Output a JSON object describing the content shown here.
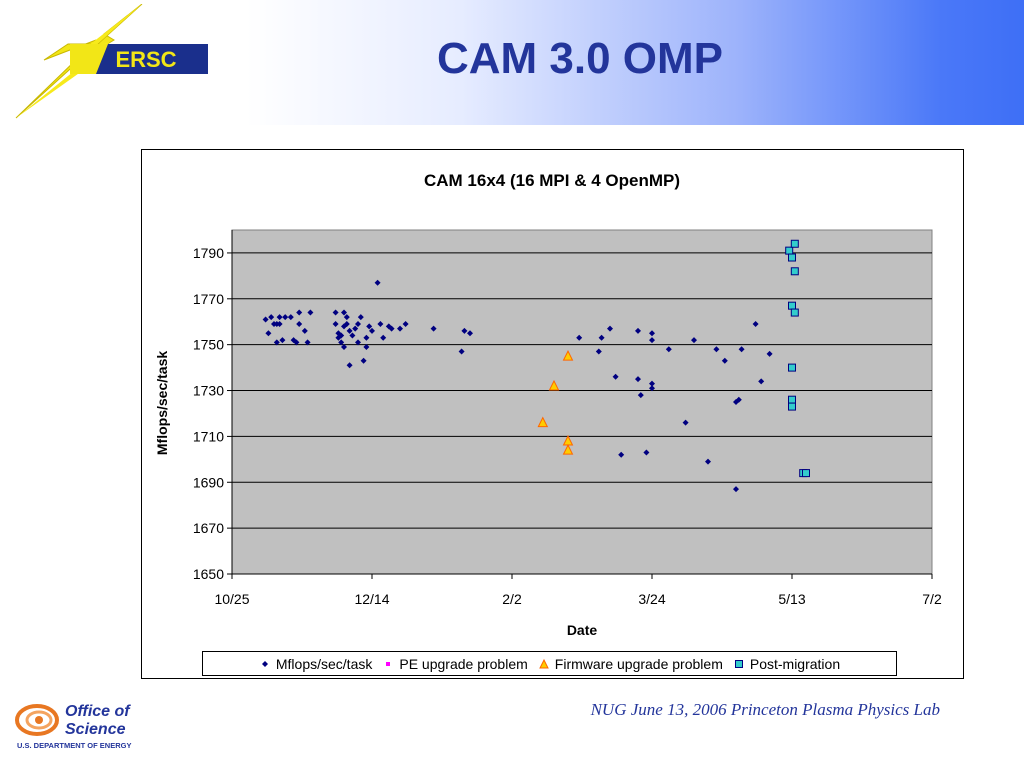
{
  "slide": {
    "title": "CAM 3.0 OMP",
    "footer": "NUG June 13, 2006 Princeton Plasma Physics Lab"
  },
  "logos": {
    "nersc": {
      "text": "ERSC",
      "icon": "nersc-lightning-logo"
    },
    "office_of_science": {
      "line1": "Office of",
      "line2": "Science",
      "line3": "U.S. DEPARTMENT OF ENERGY",
      "icon": "doe-science-logo"
    }
  },
  "colors": {
    "title": "#23359b",
    "plot_bg": "#c0c0c0",
    "series_main": "#000080",
    "series_pe": "#ff00ff",
    "series_firmware_fill": "#ffcc00",
    "series_firmware_stroke": "#ff6600",
    "series_post_fill": "#33cccc",
    "series_post_stroke": "#000080"
  },
  "chart_data": {
    "type": "scatter",
    "title": "CAM 16x4 (16 MPI & 4 OpenMP)",
    "xlabel": "Date",
    "ylabel": "Mflops/sec/task",
    "ylim": [
      1650,
      1800
    ],
    "x_ticks": [
      "10/25",
      "12/14",
      "2/2",
      "3/24",
      "5/13",
      "7/2"
    ],
    "y_ticks": [
      1650,
      1670,
      1690,
      1710,
      1730,
      1750,
      1770,
      1790
    ],
    "grid": "horizontal",
    "legend_position": "bottom",
    "series": [
      {
        "name": "Mflops/sec/task",
        "marker": "diamond",
        "points": [
          [
            "11/6",
            1761
          ],
          [
            "11/7",
            1755
          ],
          [
            "11/8",
            1762
          ],
          [
            "11/9",
            1759
          ],
          [
            "11/10",
            1759
          ],
          [
            "11/10",
            1751
          ],
          [
            "11/11",
            1762
          ],
          [
            "11/11",
            1759
          ],
          [
            "11/12",
            1752
          ],
          [
            "11/13",
            1762
          ],
          [
            "11/15",
            1762
          ],
          [
            "11/16",
            1752
          ],
          [
            "11/17",
            1751
          ],
          [
            "11/18",
            1764
          ],
          [
            "11/18",
            1759
          ],
          [
            "11/20",
            1756
          ],
          [
            "11/21",
            1751
          ],
          [
            "11/22",
            1764
          ],
          [
            "12/1",
            1764
          ],
          [
            "12/1",
            1759
          ],
          [
            "12/2",
            1755
          ],
          [
            "12/2",
            1753
          ],
          [
            "12/3",
            1754
          ],
          [
            "12/3",
            1751
          ],
          [
            "12/4",
            1764
          ],
          [
            "12/4",
            1758
          ],
          [
            "12/4",
            1749
          ],
          [
            "12/5",
            1762
          ],
          [
            "12/5",
            1759
          ],
          [
            "12/6",
            1741
          ],
          [
            "12/6",
            1756
          ],
          [
            "12/7",
            1754
          ],
          [
            "12/8",
            1757
          ],
          [
            "12/9",
            1759
          ],
          [
            "12/9",
            1751
          ],
          [
            "12/10",
            1762
          ],
          [
            "12/11",
            1743
          ],
          [
            "12/12",
            1749
          ],
          [
            "12/12",
            1753
          ],
          [
            "12/13",
            1758
          ],
          [
            "12/14",
            1756
          ],
          [
            "12/16",
            1777
          ],
          [
            "12/17",
            1759
          ],
          [
            "12/18",
            1753
          ],
          [
            "12/20",
            1758
          ],
          [
            "12/21",
            1757
          ],
          [
            "12/24",
            1757
          ],
          [
            "12/26",
            1759
          ],
          [
            "1/5",
            1757
          ],
          [
            "1/15",
            1747
          ],
          [
            "1/16",
            1756
          ],
          [
            "1/18",
            1755
          ],
          [
            "2/26",
            1753
          ],
          [
            "3/5",
            1747
          ],
          [
            "3/6",
            1753
          ],
          [
            "3/9",
            1757
          ],
          [
            "3/11",
            1736
          ],
          [
            "3/13",
            1702
          ],
          [
            "3/19",
            1756
          ],
          [
            "3/19",
            1735
          ],
          [
            "3/20",
            1728
          ],
          [
            "3/22",
            1703
          ],
          [
            "3/24",
            1755
          ],
          [
            "3/24",
            1752
          ],
          [
            "3/24",
            1733
          ],
          [
            "3/24",
            1731
          ],
          [
            "3/30",
            1748
          ],
          [
            "4/5",
            1716
          ],
          [
            "4/8",
            1752
          ],
          [
            "4/13",
            1699
          ],
          [
            "4/16",
            1748
          ],
          [
            "4/19",
            1743
          ],
          [
            "4/23",
            1687
          ],
          [
            "4/23",
            1725
          ],
          [
            "4/24",
            1726
          ],
          [
            "4/25",
            1748
          ],
          [
            "4/30",
            1759
          ],
          [
            "5/2",
            1734
          ],
          [
            "5/5",
            1746
          ]
        ]
      },
      {
        "name": "PE upgrade problem",
        "marker": "square",
        "points": []
      },
      {
        "name": "Firmware upgrade problem",
        "marker": "triangle",
        "points": [
          [
            "2/13",
            1716
          ],
          [
            "2/17",
            1732
          ],
          [
            "2/22",
            1745
          ],
          [
            "2/22",
            1708
          ],
          [
            "2/22",
            1704
          ]
        ]
      },
      {
        "name": "Post-migration",
        "marker": "square",
        "points": [
          [
            "5/12",
            1791
          ],
          [
            "5/13",
            1788
          ],
          [
            "5/14",
            1794
          ],
          [
            "5/14",
            1782
          ],
          [
            "5/13",
            1767
          ],
          [
            "5/14",
            1764
          ],
          [
            "5/13",
            1740
          ],
          [
            "5/13",
            1726
          ],
          [
            "5/13",
            1723
          ],
          [
            "5/17",
            1694
          ],
          [
            "5/18",
            1694
          ]
        ]
      }
    ]
  }
}
